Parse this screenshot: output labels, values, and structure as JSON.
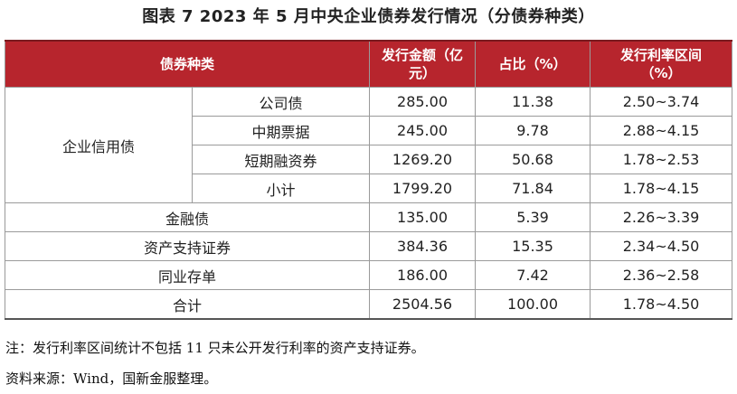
{
  "title": "图表 7  2023 年 5 月中央企业债券发行情况（分债券种类）",
  "headers": {
    "type": "债券种类",
    "amount": "发行金额（亿元）",
    "share": "占比（%）",
    "rate": "发行利率区间（%）"
  },
  "groups": {
    "corporate": "企业信用债"
  },
  "rows": [
    {
      "label": "公司债",
      "amount": "285.00",
      "share": "11.38",
      "rate": "2.50~3.74"
    },
    {
      "label": "中期票据",
      "amount": "245.00",
      "share": "9.78",
      "rate": "2.88~4.15"
    },
    {
      "label": "短期融资券",
      "amount": "1269.20",
      "share": "50.68",
      "rate": "1.78~2.53"
    },
    {
      "label": "小计",
      "amount": "1799.20",
      "share": "71.84",
      "rate": "1.78~4.15"
    },
    {
      "label": "金融债",
      "amount": "135.00",
      "share": "5.39",
      "rate": "2.26~3.39"
    },
    {
      "label": "资产支持证券",
      "amount": "384.36",
      "share": "15.35",
      "rate": "2.34~4.50"
    },
    {
      "label": "同业存单",
      "amount": "186.00",
      "share": "7.42",
      "rate": "2.36~2.58"
    },
    {
      "label": "合计",
      "amount": "2504.56",
      "share": "100.00",
      "rate": "1.78~4.50"
    }
  ],
  "notes": {
    "note": "注：发行利率区间统计不包括 11 只未公开发行利率的资产支持证券。",
    "source": "资料来源：Wind，国新金服整理。"
  },
  "colors": {
    "header_bg": "#b7252d",
    "header_text": "#ffffff"
  }
}
